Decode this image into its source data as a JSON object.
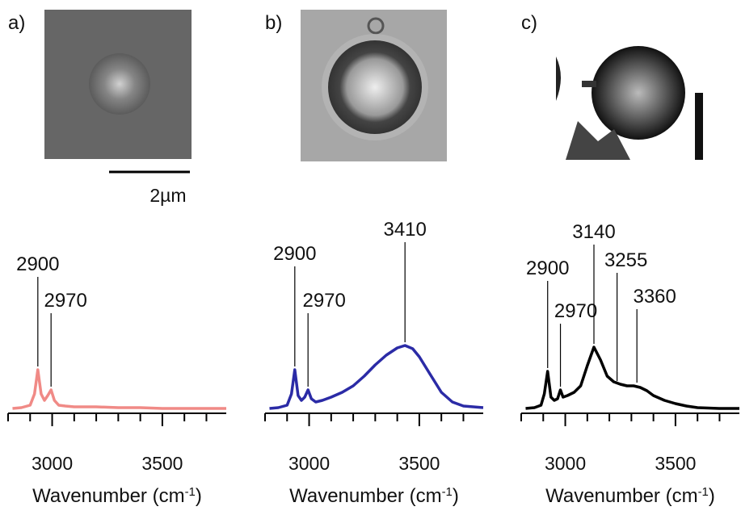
{
  "chart_data": [
    {
      "type": "line",
      "label": "a)",
      "scale_bar": "2µm",
      "x_label_parts": [
        "Wavenumber (cm",
        "-1",
        ")"
      ],
      "xlim": [
        2800,
        3790
      ],
      "ylim": [
        0,
        100
      ],
      "xticks": [
        3000,
        3500
      ],
      "minor_xticks": [
        2800,
        2900,
        3100,
        3200,
        3300,
        3400,
        3600,
        3700
      ],
      "annotations": [
        {
          "text": "2900",
          "x": 2935,
          "y": 50
        },
        {
          "text": "2970",
          "x": 2995,
          "y": 25
        }
      ],
      "series": [
        {
          "color": "#f08a86",
          "x": [
            2820,
            2860,
            2900,
            2920,
            2935,
            2950,
            2965,
            2980,
            2995,
            3010,
            3030,
            3060,
            3100,
            3200,
            3300,
            3400,
            3500,
            3600,
            3700,
            3790
          ],
          "values": [
            2,
            3,
            6,
            20,
            50,
            20,
            12,
            18,
            25,
            12,
            6,
            5,
            4,
            4,
            3,
            3,
            2,
            2,
            2,
            2
          ]
        }
      ]
    },
    {
      "type": "line",
      "label": "b)",
      "x_label_parts": [
        "Wavenumber (cm",
        "-1",
        ")"
      ],
      "xlim": [
        2800,
        3790
      ],
      "ylim": [
        0,
        100
      ],
      "xticks": [
        3000,
        3500
      ],
      "minor_xticks": [
        2800,
        2900,
        3100,
        3200,
        3300,
        3400,
        3600,
        3700
      ],
      "annotations": [
        {
          "text": "2900",
          "x": 2935,
          "y": 50
        },
        {
          "text": "2970",
          "x": 2995,
          "y": 25
        },
        {
          "text": "3410",
          "x": 3435,
          "y": 80
        }
      ],
      "series": [
        {
          "color": "#2b2ba6",
          "x": [
            2820,
            2860,
            2900,
            2920,
            2935,
            2950,
            2965,
            2980,
            2995,
            3010,
            3030,
            3060,
            3100,
            3150,
            3200,
            3250,
            3300,
            3350,
            3400,
            3435,
            3470,
            3500,
            3550,
            3600,
            3650,
            3700,
            3790
          ],
          "values": [
            2,
            3,
            6,
            20,
            50,
            18,
            12,
            16,
            25,
            14,
            10,
            12,
            16,
            22,
            30,
            42,
            56,
            68,
            77,
            80,
            76,
            66,
            44,
            22,
            10,
            5,
            3
          ]
        }
      ]
    },
    {
      "type": "line",
      "label": "c)",
      "x_label_parts": [
        "Wavenumber (cm",
        "-1",
        ")"
      ],
      "xlim": [
        2800,
        3790
      ],
      "ylim": [
        0,
        100
      ],
      "xticks": [
        3000,
        3500
      ],
      "minor_xticks": [
        2800,
        2900,
        3100,
        3200,
        3300,
        3400,
        3600,
        3700
      ],
      "annotations": [
        {
          "text": "2900",
          "x": 2920,
          "y": 48
        },
        {
          "text": "2970",
          "x": 2978,
          "y": 25
        },
        {
          "text": "3140",
          "x": 3130,
          "y": 78
        },
        {
          "text": "3255",
          "x": 3235,
          "y": 32
        },
        {
          "text": "3360",
          "x": 3325,
          "y": 30
        }
      ],
      "series": [
        {
          "color": "#000000",
          "x": [
            2820,
            2860,
            2890,
            2905,
            2920,
            2935,
            2950,
            2965,
            2978,
            2990,
            3010,
            3040,
            3070,
            3100,
            3130,
            3160,
            3190,
            3220,
            3250,
            3280,
            3310,
            3340,
            3370,
            3400,
            3450,
            3500,
            3550,
            3600,
            3700,
            3790
          ],
          "values": [
            2,
            3,
            6,
            20,
            48,
            16,
            12,
            14,
            25,
            16,
            18,
            22,
            30,
            55,
            78,
            62,
            42,
            35,
            32,
            30,
            30,
            28,
            24,
            18,
            12,
            8,
            5,
            3,
            2,
            2
          ]
        }
      ]
    }
  ]
}
